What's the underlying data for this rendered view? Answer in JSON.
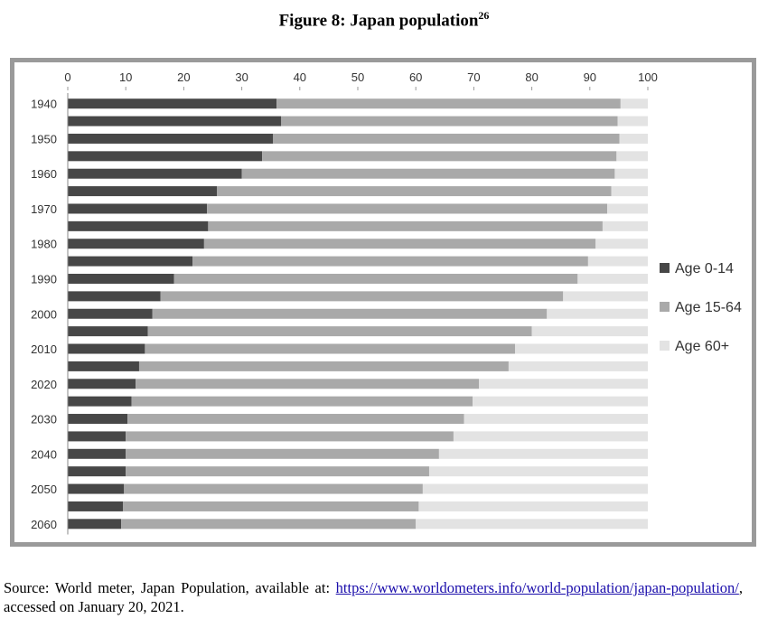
{
  "figure": {
    "title": "Figure 8: Japan population",
    "footnote_ref": "26"
  },
  "source": {
    "prefix": "Source: World meter, Japan Population, available at:",
    "link_text": "https://www.worldometers.info/world-population/japan-population/",
    "suffix": ", accessed on January 20, 2021."
  },
  "colors": {
    "age_0_14": "#474747",
    "age_15_64": "#a9a9a9",
    "age_60_plus": "#e3e3e3",
    "frame": "#9a9a9a"
  },
  "chart_data": {
    "type": "bar",
    "orientation": "horizontal",
    "stacked": true,
    "xlim": [
      0,
      100
    ],
    "x_ticks": [
      "0",
      "10",
      "20",
      "30",
      "40",
      "50",
      "60",
      "70",
      "80",
      "90",
      "100"
    ],
    "y_tick_labels": [
      "1940",
      "1950",
      "1960",
      "1970",
      "1980",
      "1990",
      "2000",
      "2010",
      "2020",
      "2030",
      "2040",
      "2050",
      "2060"
    ],
    "categories": [
      1940,
      1945,
      1950,
      1955,
      1960,
      1965,
      1970,
      1975,
      1980,
      1985,
      1990,
      1995,
      2000,
      2005,
      2010,
      2015,
      2020,
      2025,
      2030,
      2035,
      2040,
      2045,
      2050,
      2055,
      2060
    ],
    "legend_position": "right",
    "grid": false,
    "series": [
      {
        "name": "Age 0-14",
        "values": [
          36,
          36.8,
          35.4,
          33.5,
          30,
          25.7,
          24,
          24.2,
          23.5,
          21.5,
          18.3,
          16,
          14.6,
          13.8,
          13.3,
          12.3,
          11.7,
          11,
          10.3,
          10,
          10,
          10,
          9.7,
          9.5,
          9.2
        ]
      },
      {
        "name": "Age 15-64",
        "values": [
          59.3,
          58,
          59.7,
          61.1,
          64.3,
          68,
          69,
          68,
          67.5,
          68.2,
          69.6,
          69.4,
          68,
          66.2,
          63.8,
          63.7,
          59.2,
          58.8,
          58,
          56.5,
          54,
          52.3,
          51.5,
          51,
          50.8
        ]
      },
      {
        "name": "Age 60+",
        "values": [
          4.7,
          5.2,
          4.9,
          5.4,
          5.7,
          6.3,
          7,
          7.8,
          9,
          10.3,
          12.1,
          14.6,
          17.4,
          20,
          22.9,
          24,
          29.1,
          30.2,
          31.7,
          33.5,
          36,
          37.7,
          38.8,
          39.5,
          40
        ]
      }
    ]
  }
}
